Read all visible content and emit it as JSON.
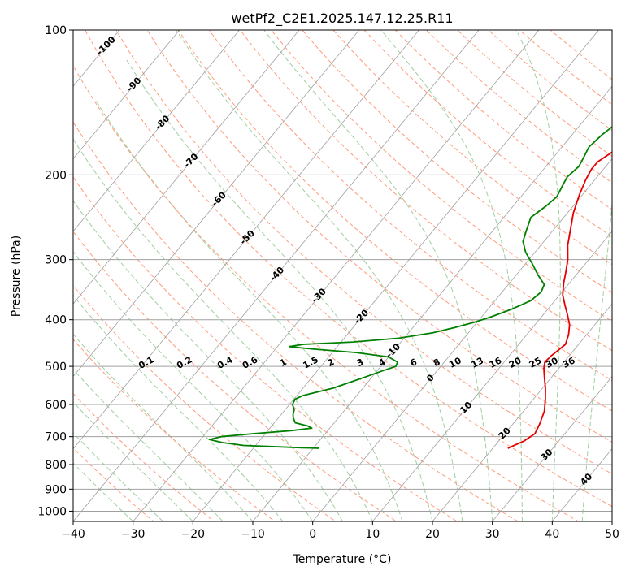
{
  "chart_data": {
    "type": "line",
    "subtype": "skew-t log-p",
    "title": "wetPf2_C2E1.2025.147.12.25.R11",
    "xlabel": "Temperature (°C)",
    "ylabel": "Pressure (hPa)",
    "xlim": [
      -40,
      50
    ],
    "ylim": [
      1050,
      100
    ],
    "y_scale": "log",
    "x_ticks": [
      "−40",
      "−30",
      "−20",
      "−10",
      "0",
      "10",
      "20",
      "30",
      "40",
      "50"
    ],
    "y_ticks": [
      "100",
      "200",
      "300",
      "400",
      "500",
      "600",
      "700",
      "800",
      "900",
      "1000"
    ],
    "grid": true,
    "series": [
      {
        "role": "temperature",
        "color": "#e60000",
        "points": [
          [
            22.5,
            740
          ],
          [
            24.2,
            715
          ],
          [
            25.0,
            690
          ],
          [
            24.5,
            660
          ],
          [
            23.5,
            620
          ],
          [
            22.0,
            585
          ],
          [
            20.5,
            555
          ],
          [
            19.0,
            530
          ],
          [
            17.5,
            505
          ],
          [
            16.8,
            490
          ],
          [
            17.0,
            475
          ],
          [
            17.5,
            460
          ],
          [
            17.8,
            450
          ],
          [
            17.0,
            430
          ],
          [
            15.8,
            410
          ],
          [
            14.0,
            390
          ],
          [
            12.5,
            375
          ],
          [
            10.5,
            355
          ],
          [
            9.0,
            335
          ],
          [
            8.0,
            320
          ],
          [
            6.5,
            300
          ],
          [
            4.5,
            280
          ],
          [
            3.0,
            262
          ],
          [
            1.0,
            240
          ],
          [
            -0.5,
            220
          ],
          [
            -1.5,
            205
          ],
          [
            -2.0,
            195
          ],
          [
            -2.0,
            188
          ],
          [
            -1.0,
            180
          ],
          [
            0.5,
            172
          ],
          [
            2.0,
            165
          ],
          [
            3.0,
            158
          ],
          [
            3.0,
            148
          ],
          [
            2.5,
            138
          ],
          [
            2.0,
            128
          ],
          [
            2.0,
            120
          ],
          [
            3.5,
            114
          ],
          [
            5.0,
            108
          ],
          [
            6.0,
            104
          ],
          [
            6.5,
            100
          ]
        ]
      },
      {
        "role": "dewpoint",
        "color": "#008000",
        "points": [
          [
            -9.0,
            740
          ],
          [
            -12.0,
            738
          ],
          [
            -22.0,
            730
          ],
          [
            -26.0,
            720
          ],
          [
            -28.5,
            710
          ],
          [
            -27.0,
            700
          ],
          [
            -22.0,
            690
          ],
          [
            -16.0,
            680
          ],
          [
            -13.0,
            672
          ],
          [
            -14.0,
            665
          ],
          [
            -16.5,
            655
          ],
          [
            -17.5,
            640
          ],
          [
            -18.0,
            630
          ],
          [
            -18.5,
            615
          ],
          [
            -19.5,
            600
          ],
          [
            -19.8,
            585
          ],
          [
            -19.0,
            575
          ],
          [
            -17.0,
            565
          ],
          [
            -15.0,
            555
          ],
          [
            -13.0,
            540
          ],
          [
            -11.0,
            525
          ],
          [
            -9.0,
            510
          ],
          [
            -7.5,
            500
          ],
          [
            -7.8,
            490
          ],
          [
            -10.0,
            478
          ],
          [
            -16.0,
            468
          ],
          [
            -24.0,
            460
          ],
          [
            -28.0,
            455
          ],
          [
            -26.0,
            450
          ],
          [
            -18.0,
            445
          ],
          [
            -11.0,
            437
          ],
          [
            -6.0,
            426
          ],
          [
            -3.0,
            415
          ],
          [
            -0.5,
            405
          ],
          [
            1.5,
            395
          ],
          [
            4.0,
            380
          ],
          [
            6.0,
            365
          ],
          [
            6.5,
            350
          ],
          [
            6.0,
            338
          ],
          [
            3.5,
            322
          ],
          [
            1.0,
            305
          ],
          [
            -1.5,
            290
          ],
          [
            -3.5,
            275
          ],
          [
            -4.5,
            260
          ],
          [
            -5.5,
            245
          ],
          [
            -4.5,
            232
          ],
          [
            -4.0,
            222
          ],
          [
            -4.5,
            212
          ],
          [
            -5.0,
            202
          ],
          [
            -4.5,
            192
          ],
          [
            -5.0,
            183
          ],
          [
            -5.5,
            175
          ],
          [
            -5.0,
            165
          ],
          [
            -4.0,
            155
          ],
          [
            -2.5,
            145
          ],
          [
            -1.0,
            135
          ],
          [
            0.0,
            125
          ],
          [
            0.5,
            115
          ],
          [
            0.5,
            108
          ],
          [
            0.8,
            103
          ],
          [
            1.0,
            100
          ]
        ]
      }
    ],
    "reference_lines": {
      "dry_adiabat_labels": [
        "-100",
        "-90",
        "-80",
        "-70",
        "-60",
        "-50",
        "-40",
        "-30",
        "-20",
        "-10",
        "0",
        "10",
        "20",
        "30",
        "40"
      ],
      "mixing_ratio_labels": [
        "0.1",
        "0.2",
        "0.4",
        "0.6",
        "1",
        "1.5",
        "2",
        "3",
        "4",
        "6",
        "8",
        "10",
        "13",
        "16",
        "20",
        "25",
        "30",
        "36"
      ],
      "mixing_ratios": [
        0.1,
        0.2,
        0.4,
        0.6,
        1,
        1.5,
        2,
        3,
        4,
        6,
        8,
        10,
        13,
        16,
        20,
        25,
        30,
        36
      ],
      "colors": {
        "isotherm": "#a0a0a0",
        "dry_adiabat": "#ff9a7a",
        "moist_adiabat": "#7fbf7f",
        "mixing_ratio": "#1e7fe6",
        "label_cold": "#1f6fa8",
        "label_warm": "#d62728",
        "label_zero": "#808080"
      }
    }
  }
}
